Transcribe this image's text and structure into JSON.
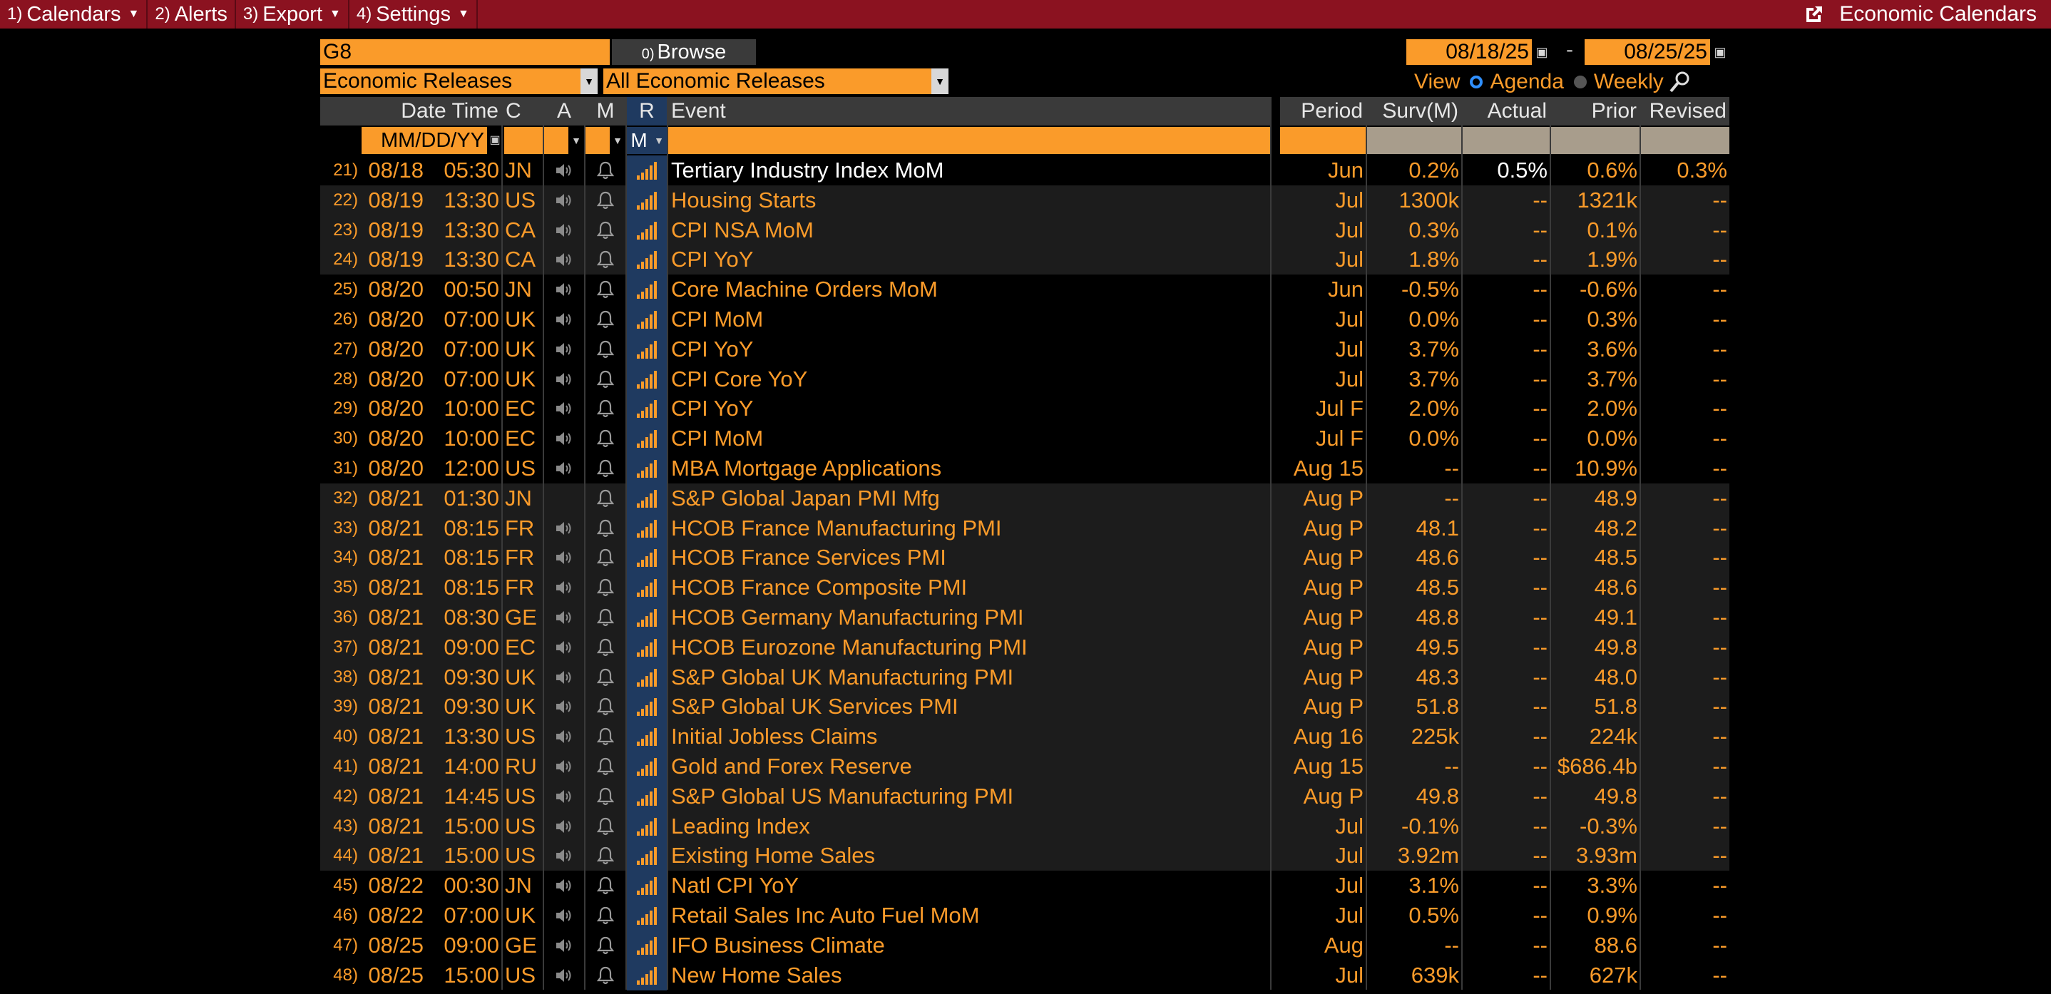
{
  "menu": [
    {
      "num": "1)",
      "label": "Calendars",
      "caret": true
    },
    {
      "num": "2)",
      "label": "Alerts",
      "caret": false
    },
    {
      "num": "3)",
      "label": "Export",
      "caret": true
    },
    {
      "num": "4)",
      "label": "Settings",
      "caret": true
    }
  ],
  "window_title": "Economic Calendars",
  "filters": {
    "region": "G8",
    "browse_label": "Browse",
    "browse_prefix": "0)",
    "date_from": "08/18/25",
    "date_to": "08/25/25",
    "date_sep": "-",
    "source": "Economic Releases",
    "releases": "All Economic Releases",
    "view_label": "View",
    "view_agenda": "Agenda",
    "view_weekly": "Weekly",
    "date_placeholder": "MM/DD/YY",
    "r_filter": "M"
  },
  "columns": {
    "datetime": "Date Time",
    "c": "C",
    "a": "A",
    "m": "M",
    "r": "R",
    "event": "Event",
    "period": "Period",
    "surv": "Surv(M)",
    "actual": "Actual",
    "prior": "Prior",
    "revised": "Revised"
  },
  "colors": {
    "accent": "#fa9b2a",
    "menu_bg": "#8b1220",
    "r_col": "#1f3a60"
  },
  "rows": [
    {
      "n": "21",
      "date": "08/18",
      "time": "05:30",
      "c": "JN",
      "sound": true,
      "event": "Tertiary Industry Index MoM",
      "period": "Jun",
      "surv": "0.2%",
      "actual": "0.5%",
      "prior": "0.6%",
      "revised": "0.3%",
      "sel": true,
      "alt": false
    },
    {
      "n": "22",
      "date": "08/19",
      "time": "13:30",
      "c": "US",
      "sound": true,
      "event": "Housing Starts",
      "period": "Jul",
      "surv": "1300k",
      "actual": "--",
      "prior": "1321k",
      "revised": "--",
      "alt": true
    },
    {
      "n": "23",
      "date": "08/19",
      "time": "13:30",
      "c": "CA",
      "sound": true,
      "event": "CPI NSA MoM",
      "period": "Jul",
      "surv": "0.3%",
      "actual": "--",
      "prior": "0.1%",
      "revised": "--",
      "alt": true
    },
    {
      "n": "24",
      "date": "08/19",
      "time": "13:30",
      "c": "CA",
      "sound": true,
      "event": "CPI YoY",
      "period": "Jul",
      "surv": "1.8%",
      "actual": "--",
      "prior": "1.9%",
      "revised": "--",
      "alt": true
    },
    {
      "n": "25",
      "date": "08/20",
      "time": "00:50",
      "c": "JN",
      "sound": true,
      "event": "Core Machine Orders MoM",
      "period": "Jun",
      "surv": "-0.5%",
      "actual": "--",
      "prior": "-0.6%",
      "revised": "--",
      "alt": false
    },
    {
      "n": "26",
      "date": "08/20",
      "time": "07:00",
      "c": "UK",
      "sound": true,
      "event": "CPI MoM",
      "period": "Jul",
      "surv": "0.0%",
      "actual": "--",
      "prior": "0.3%",
      "revised": "--",
      "alt": false
    },
    {
      "n": "27",
      "date": "08/20",
      "time": "07:00",
      "c": "UK",
      "sound": true,
      "event": "CPI YoY",
      "period": "Jul",
      "surv": "3.7%",
      "actual": "--",
      "prior": "3.6%",
      "revised": "--",
      "alt": false
    },
    {
      "n": "28",
      "date": "08/20",
      "time": "07:00",
      "c": "UK",
      "sound": true,
      "event": "CPI Core YoY",
      "period": "Jul",
      "surv": "3.7%",
      "actual": "--",
      "prior": "3.7%",
      "revised": "--",
      "alt": false
    },
    {
      "n": "29",
      "date": "08/20",
      "time": "10:00",
      "c": "EC",
      "sound": true,
      "event": "CPI YoY",
      "period": "Jul F",
      "surv": "2.0%",
      "actual": "--",
      "prior": "2.0%",
      "revised": "--",
      "alt": false
    },
    {
      "n": "30",
      "date": "08/20",
      "time": "10:00",
      "c": "EC",
      "sound": true,
      "event": "CPI MoM",
      "period": "Jul F",
      "surv": "0.0%",
      "actual": "--",
      "prior": "0.0%",
      "revised": "--",
      "alt": false
    },
    {
      "n": "31",
      "date": "08/20",
      "time": "12:00",
      "c": "US",
      "sound": true,
      "event": "MBA Mortgage Applications",
      "period": "Aug 15",
      "surv": "--",
      "actual": "--",
      "prior": "10.9%",
      "revised": "--",
      "alt": false
    },
    {
      "n": "32",
      "date": "08/21",
      "time": "01:30",
      "c": "JN",
      "sound": false,
      "event": "S&P Global Japan PMI Mfg",
      "period": "Aug P",
      "surv": "--",
      "actual": "--",
      "prior": "48.9",
      "revised": "--",
      "alt": true
    },
    {
      "n": "33",
      "date": "08/21",
      "time": "08:15",
      "c": "FR",
      "sound": true,
      "event": "HCOB France Manufacturing PMI",
      "period": "Aug P",
      "surv": "48.1",
      "actual": "--",
      "prior": "48.2",
      "revised": "--",
      "alt": true
    },
    {
      "n": "34",
      "date": "08/21",
      "time": "08:15",
      "c": "FR",
      "sound": true,
      "event": "HCOB France Services PMI",
      "period": "Aug P",
      "surv": "48.6",
      "actual": "--",
      "prior": "48.5",
      "revised": "--",
      "alt": true
    },
    {
      "n": "35",
      "date": "08/21",
      "time": "08:15",
      "c": "FR",
      "sound": true,
      "event": "HCOB France Composite PMI",
      "period": "Aug P",
      "surv": "48.5",
      "actual": "--",
      "prior": "48.6",
      "revised": "--",
      "alt": true
    },
    {
      "n": "36",
      "date": "08/21",
      "time": "08:30",
      "c": "GE",
      "sound": true,
      "event": "HCOB Germany Manufacturing PMI",
      "period": "Aug P",
      "surv": "48.8",
      "actual": "--",
      "prior": "49.1",
      "revised": "--",
      "alt": true
    },
    {
      "n": "37",
      "date": "08/21",
      "time": "09:00",
      "c": "EC",
      "sound": true,
      "event": "HCOB Eurozone Manufacturing PMI",
      "period": "Aug P",
      "surv": "49.5",
      "actual": "--",
      "prior": "49.8",
      "revised": "--",
      "alt": true
    },
    {
      "n": "38",
      "date": "08/21",
      "time": "09:30",
      "c": "UK",
      "sound": true,
      "event": "S&P Global UK Manufacturing PMI",
      "period": "Aug P",
      "surv": "48.3",
      "actual": "--",
      "prior": "48.0",
      "revised": "--",
      "alt": true
    },
    {
      "n": "39",
      "date": "08/21",
      "time": "09:30",
      "c": "UK",
      "sound": true,
      "event": "S&P Global UK Services PMI",
      "period": "Aug P",
      "surv": "51.8",
      "actual": "--",
      "prior": "51.8",
      "revised": "--",
      "alt": true
    },
    {
      "n": "40",
      "date": "08/21",
      "time": "13:30",
      "c": "US",
      "sound": true,
      "event": "Initial Jobless Claims",
      "period": "Aug 16",
      "surv": "225k",
      "actual": "--",
      "prior": "224k",
      "revised": "--",
      "alt": true
    },
    {
      "n": "41",
      "date": "08/21",
      "time": "14:00",
      "c": "RU",
      "sound": true,
      "event": "Gold and Forex Reserve",
      "period": "Aug 15",
      "surv": "--",
      "actual": "--",
      "prior": "$686.4b",
      "revised": "--",
      "alt": true
    },
    {
      "n": "42",
      "date": "08/21",
      "time": "14:45",
      "c": "US",
      "sound": true,
      "event": "S&P Global US Manufacturing PMI",
      "period": "Aug P",
      "surv": "49.8",
      "actual": "--",
      "prior": "49.8",
      "revised": "--",
      "alt": true
    },
    {
      "n": "43",
      "date": "08/21",
      "time": "15:00",
      "c": "US",
      "sound": true,
      "event": "Leading Index",
      "period": "Jul",
      "surv": "-0.1%",
      "actual": "--",
      "prior": "-0.3%",
      "revised": "--",
      "alt": true
    },
    {
      "n": "44",
      "date": "08/21",
      "time": "15:00",
      "c": "US",
      "sound": true,
      "event": "Existing Home Sales",
      "period": "Jul",
      "surv": "3.92m",
      "actual": "--",
      "prior": "3.93m",
      "revised": "--",
      "alt": true
    },
    {
      "n": "45",
      "date": "08/22",
      "time": "00:30",
      "c": "JN",
      "sound": true,
      "event": "Natl CPI YoY",
      "period": "Jul",
      "surv": "3.1%",
      "actual": "--",
      "prior": "3.3%",
      "revised": "--",
      "alt": false
    },
    {
      "n": "46",
      "date": "08/22",
      "time": "07:00",
      "c": "UK",
      "sound": true,
      "event": "Retail Sales Inc Auto Fuel MoM",
      "period": "Jul",
      "surv": "0.5%",
      "actual": "--",
      "prior": "0.9%",
      "revised": "--",
      "alt": false
    },
    {
      "n": "47",
      "date": "08/25",
      "time": "09:00",
      "c": "GE",
      "sound": true,
      "event": "IFO Business Climate",
      "period": "Aug",
      "surv": "--",
      "actual": "--",
      "prior": "88.6",
      "revised": "--",
      "alt": false
    },
    {
      "n": "48",
      "date": "08/25",
      "time": "15:00",
      "c": "US",
      "sound": true,
      "event": "New Home Sales",
      "period": "Jul",
      "surv": "639k",
      "actual": "--",
      "prior": "627k",
      "revised": "--",
      "alt": false
    }
  ]
}
